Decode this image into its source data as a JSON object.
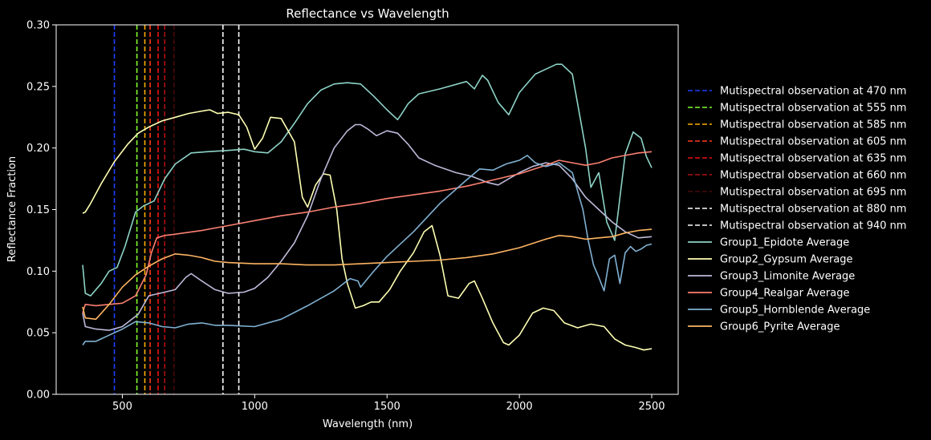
{
  "chart_data": {
    "type": "line",
    "title": "Reflectance vs Wavelength",
    "xlabel": "Wavelength (nm)",
    "ylabel": "Reflectance Fraction",
    "xlim": [
      250,
      2600
    ],
    "ylim": [
      0.0,
      0.3
    ],
    "xticks": [
      500,
      1000,
      1500,
      2000,
      2500
    ],
    "xtick_labels": [
      "500",
      "1000",
      "1500",
      "2000",
      "2500"
    ],
    "yticks": [
      0.0,
      0.05,
      0.1,
      0.15,
      0.2,
      0.25,
      0.3
    ],
    "ytick_labels": [
      "0.00",
      "0.05",
      "0.10",
      "0.15",
      "0.20",
      "0.25",
      "0.30"
    ],
    "grid": false,
    "background": "#000000",
    "legend_position": "right-outside",
    "vlines": [
      {
        "name": "Mutispectral observation at 470 nm",
        "x": 470,
        "color": "#1f3fff",
        "style": "dashed"
      },
      {
        "name": "Mutispectral observation at 555 nm",
        "x": 555,
        "color": "#7fff2a",
        "style": "dashed"
      },
      {
        "name": "Mutispectral observation at 585 nm",
        "x": 585,
        "color": "#ffb000",
        "style": "dashed"
      },
      {
        "name": "Mutispectral observation at 605 nm",
        "x": 605,
        "color": "#ff3a1a",
        "style": "dashed"
      },
      {
        "name": "Mutispectral observation at 635 nm",
        "x": 635,
        "color": "#ee1111",
        "style": "dashed"
      },
      {
        "name": "Mutispectral observation at 660 nm",
        "x": 660,
        "color": "#b01010",
        "style": "dashed"
      },
      {
        "name": "Mutispectral observation at 695 nm",
        "x": 695,
        "color": "#4a0808",
        "style": "dashed"
      },
      {
        "name": "Mutispectral observation at 880 nm",
        "x": 880,
        "color": "#ffffff",
        "style": "dashed"
      },
      {
        "name": "Mutispectral observation at 940 nm",
        "x": 940,
        "color": "#ffffff",
        "style": "dashed"
      }
    ],
    "series": [
      {
        "name": "Group1_Epidote Average",
        "color": "#8dd3c7",
        "x": [
          350,
          360,
          380,
          420,
          450,
          480,
          510,
          550,
          580,
          620,
          660,
          700,
          760,
          820,
          900,
          960,
          1000,
          1050,
          1100,
          1150,
          1200,
          1250,
          1300,
          1350,
          1400,
          1450,
          1500,
          1540,
          1550,
          1580,
          1620,
          1700,
          1800,
          1830,
          1860,
          1880,
          1920,
          1960,
          2000,
          2060,
          2100,
          2140,
          2160,
          2200,
          2250,
          2270,
          2300,
          2330,
          2360,
          2400,
          2430,
          2460,
          2480,
          2500
        ],
        "y": [
          0.105,
          0.082,
          0.08,
          0.09,
          0.1,
          0.103,
          0.12,
          0.148,
          0.153,
          0.157,
          0.175,
          0.187,
          0.196,
          0.197,
          0.198,
          0.199,
          0.197,
          0.196,
          0.205,
          0.22,
          0.236,
          0.247,
          0.252,
          0.253,
          0.252,
          0.242,
          0.231,
          0.223,
          0.226,
          0.236,
          0.244,
          0.248,
          0.254,
          0.248,
          0.259,
          0.255,
          0.237,
          0.227,
          0.245,
          0.26,
          0.264,
          0.268,
          0.268,
          0.26,
          0.2,
          0.168,
          0.18,
          0.14,
          0.125,
          0.195,
          0.213,
          0.208,
          0.193,
          0.184
        ]
      },
      {
        "name": "Group2_Gypsum Average",
        "color": "#ffffb3",
        "x": [
          350,
          360,
          380,
          420,
          470,
          520,
          560,
          600,
          650,
          700,
          750,
          800,
          830,
          860,
          900,
          940,
          970,
          1000,
          1030,
          1060,
          1100,
          1150,
          1180,
          1200,
          1230,
          1260,
          1285,
          1310,
          1330,
          1350,
          1380,
          1410,
          1440,
          1470,
          1510,
          1550,
          1600,
          1640,
          1670,
          1700,
          1730,
          1770,
          1810,
          1830,
          1860,
          1900,
          1940,
          1960,
          2000,
          2050,
          2090,
          2130,
          2170,
          2220,
          2270,
          2320,
          2360,
          2400,
          2440,
          2470,
          2500
        ],
        "y": [
          0.147,
          0.148,
          0.155,
          0.171,
          0.189,
          0.203,
          0.212,
          0.217,
          0.222,
          0.225,
          0.228,
          0.23,
          0.231,
          0.228,
          0.229,
          0.227,
          0.217,
          0.199,
          0.208,
          0.225,
          0.224,
          0.205,
          0.16,
          0.152,
          0.17,
          0.179,
          0.178,
          0.15,
          0.11,
          0.09,
          0.07,
          0.072,
          0.075,
          0.075,
          0.085,
          0.1,
          0.115,
          0.132,
          0.137,
          0.113,
          0.08,
          0.078,
          0.09,
          0.092,
          0.078,
          0.058,
          0.042,
          0.04,
          0.048,
          0.066,
          0.07,
          0.068,
          0.058,
          0.054,
          0.057,
          0.055,
          0.045,
          0.04,
          0.038,
          0.036,
          0.037
        ]
      },
      {
        "name": "Group3_Limonite Average",
        "color": "#bebada",
        "x": [
          350,
          360,
          400,
          450,
          500,
          560,
          600,
          660,
          700,
          740,
          760,
          800,
          850,
          900,
          960,
          1000,
          1050,
          1100,
          1150,
          1200,
          1250,
          1300,
          1350,
          1380,
          1400,
          1430,
          1460,
          1500,
          1540,
          1580,
          1620,
          1680,
          1760,
          1820,
          1880,
          1920,
          1960,
          2000,
          2050,
          2100,
          2150,
          2200,
          2250,
          2300,
          2350,
          2400,
          2450,
          2500
        ],
        "y": [
          0.066,
          0.055,
          0.053,
          0.052,
          0.055,
          0.065,
          0.08,
          0.083,
          0.085,
          0.095,
          0.098,
          0.092,
          0.085,
          0.082,
          0.083,
          0.086,
          0.095,
          0.108,
          0.123,
          0.145,
          0.175,
          0.2,
          0.214,
          0.219,
          0.219,
          0.215,
          0.21,
          0.214,
          0.212,
          0.203,
          0.192,
          0.186,
          0.18,
          0.177,
          0.172,
          0.17,
          0.175,
          0.18,
          0.185,
          0.188,
          0.186,
          0.175,
          0.16,
          0.15,
          0.14,
          0.132,
          0.127,
          0.128
        ]
      },
      {
        "name": "Group4_Realgar Average",
        "color": "#fb8072",
        "x": [
          350,
          360,
          400,
          450,
          500,
          550,
          590,
          610,
          630,
          660,
          700,
          800,
          900,
          1000,
          1100,
          1200,
          1300,
          1400,
          1500,
          1600,
          1700,
          1800,
          1900,
          2000,
          2100,
          2150,
          2200,
          2250,
          2300,
          2350,
          2400,
          2450,
          2500
        ],
        "y": [
          0.066,
          0.073,
          0.072,
          0.073,
          0.074,
          0.08,
          0.097,
          0.115,
          0.127,
          0.129,
          0.13,
          0.133,
          0.137,
          0.141,
          0.145,
          0.148,
          0.152,
          0.155,
          0.159,
          0.162,
          0.165,
          0.169,
          0.174,
          0.179,
          0.186,
          0.19,
          0.188,
          0.186,
          0.188,
          0.192,
          0.194,
          0.196,
          0.197
        ]
      },
      {
        "name": "Group5_Hornblende Average",
        "color": "#80b1d3",
        "x": [
          350,
          360,
          400,
          450,
          500,
          550,
          600,
          650,
          700,
          750,
          800,
          850,
          900,
          1000,
          1100,
          1200,
          1300,
          1360,
          1390,
          1400,
          1450,
          1500,
          1600,
          1700,
          1800,
          1850,
          1900,
          1950,
          2000,
          2030,
          2060,
          2100,
          2150,
          2200,
          2240,
          2260,
          2280,
          2300,
          2320,
          2340,
          2360,
          2380,
          2400,
          2420,
          2440,
          2460,
          2480,
          2500
        ],
        "y": [
          0.04,
          0.043,
          0.043,
          0.048,
          0.053,
          0.059,
          0.058,
          0.055,
          0.054,
          0.057,
          0.058,
          0.056,
          0.056,
          0.055,
          0.061,
          0.072,
          0.084,
          0.094,
          0.092,
          0.087,
          0.1,
          0.112,
          0.132,
          0.155,
          0.174,
          0.183,
          0.182,
          0.187,
          0.19,
          0.194,
          0.188,
          0.185,
          0.188,
          0.18,
          0.15,
          0.125,
          0.105,
          0.095,
          0.084,
          0.11,
          0.113,
          0.09,
          0.115,
          0.12,
          0.116,
          0.118,
          0.121,
          0.122
        ]
      },
      {
        "name": "Group6_Pyrite Average",
        "color": "#fdb462",
        "x": [
          350,
          360,
          400,
          450,
          500,
          550,
          600,
          650,
          700,
          750,
          800,
          850,
          900,
          1000,
          1100,
          1200,
          1300,
          1400,
          1500,
          1600,
          1700,
          1800,
          1900,
          2000,
          2100,
          2150,
          2200,
          2250,
          2300,
          2350,
          2400,
          2450,
          2500
        ],
        "y": [
          0.071,
          0.062,
          0.061,
          0.073,
          0.087,
          0.097,
          0.104,
          0.11,
          0.114,
          0.113,
          0.111,
          0.108,
          0.107,
          0.106,
          0.106,
          0.105,
          0.105,
          0.106,
          0.107,
          0.108,
          0.109,
          0.111,
          0.114,
          0.119,
          0.126,
          0.129,
          0.128,
          0.126,
          0.127,
          0.128,
          0.131,
          0.133,
          0.134
        ]
      }
    ]
  }
}
